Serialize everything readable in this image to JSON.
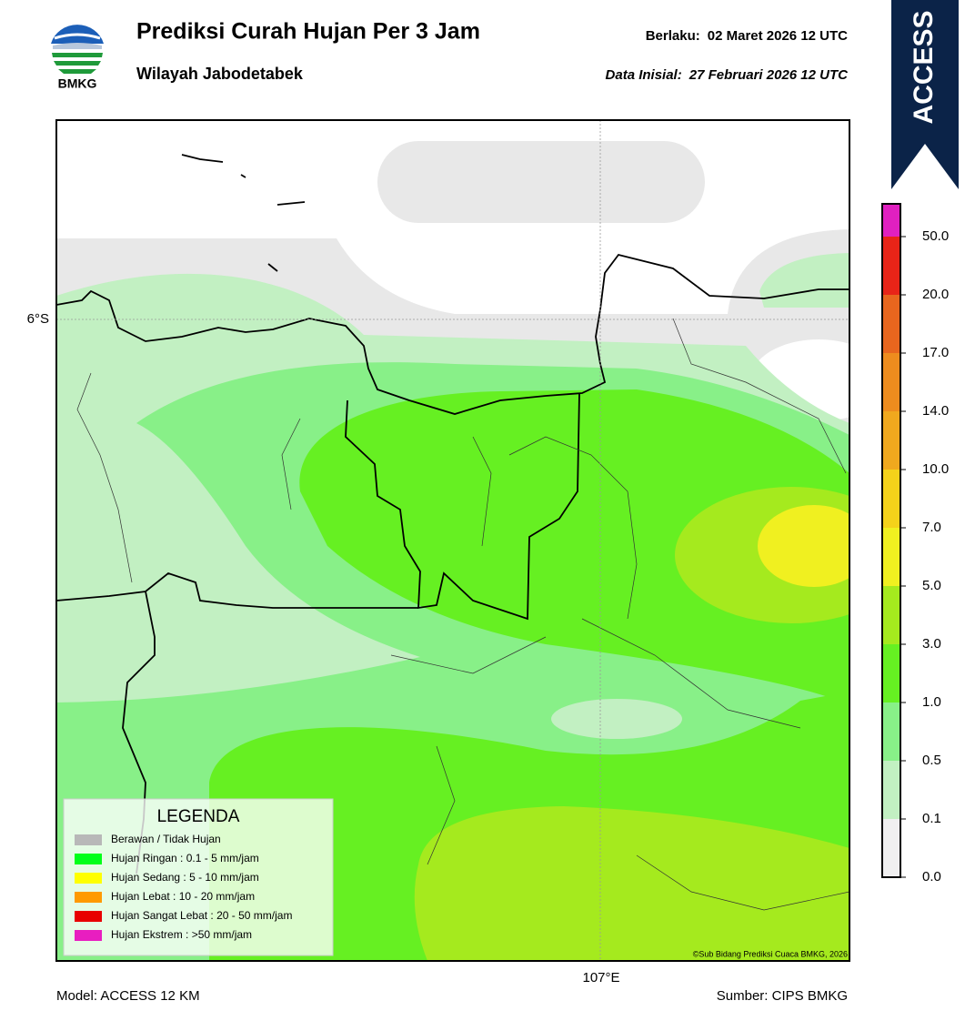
{
  "header": {
    "logo_text": "BMKG",
    "title": "Prediksi Curah Hujan Per 3 Jam",
    "subtitle": "Wilayah Jabodetabek",
    "valid_label": "Berlaku:",
    "valid_date": "02 Maret 2026 12 UTC",
    "init_label": "Data Inisial:",
    "init_date": "27 Februari 2026 12 UTC",
    "model_badge": "ACCESS"
  },
  "map": {
    "lat_label": "6°S",
    "lon_label": "107°E",
    "credit": "©Sub Bidang Prediksi Cuaca BMKG, 2026"
  },
  "legend": {
    "title": "LEGENDA",
    "items": [
      {
        "label": "Berawan / Tidak Hujan",
        "color": "#b8b8b8"
      },
      {
        "label": "Hujan Ringan : 0.1 - 5 mm/jam",
        "color": "#00ff1a"
      },
      {
        "label": "Hujan Sedang : 5 - 10 mm/jam",
        "color": "#ffff00"
      },
      {
        "label": "Hujan Lebat : 10 - 20 mm/jam",
        "color": "#ff9a00"
      },
      {
        "label": "Hujan Sangat Lebat : 20 - 50 mm/jam",
        "color": "#e80000"
      },
      {
        "label": "Hujan Ekstrem : >50 mm/jam",
        "color": "#e81ec0"
      }
    ]
  },
  "colorbar": {
    "labels": [
      "0.0",
      "0.1",
      "0.5",
      "1.0",
      "3.0",
      "5.0",
      "7.0",
      "10.0",
      "14.0",
      "17.0",
      "20.0",
      "50.0"
    ],
    "colors": [
      "#f0eff0",
      "#c2f0c2",
      "#88f088",
      "#66f022",
      "#a5ea1e",
      "#f0f020",
      "#f5d21a",
      "#f0a81e",
      "#ee8c1e",
      "#e8661e",
      "#e82418",
      "#e020c0"
    ]
  },
  "footer": {
    "model": "Model: ACCESS 12 KM",
    "source": "Sumber: CIPS BMKG"
  }
}
